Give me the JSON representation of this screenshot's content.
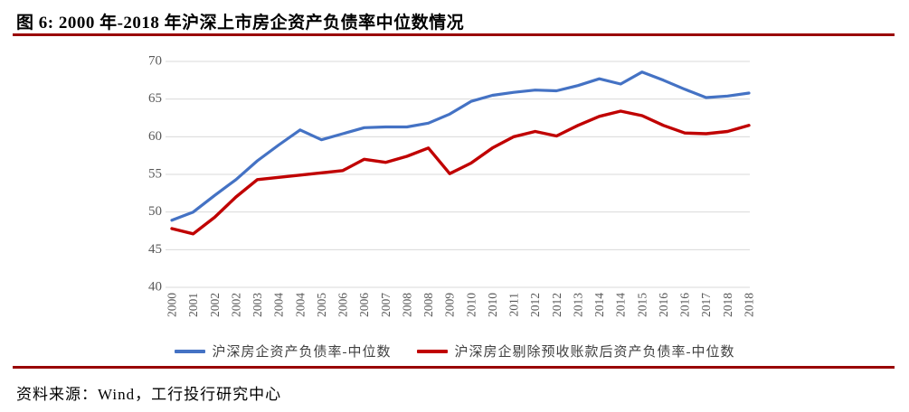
{
  "figure": {
    "title": "图 6: 2000 年-2018 年沪深上市房企资产负债率中位数情况",
    "source": "资料来源：Wind，工行投行研究中心"
  },
  "colors": {
    "rule": "#990000",
    "grid": "#D9D9D9",
    "axis_text": "#595959",
    "legend_text": "#404040",
    "series_blue": "#4472C4",
    "series_red": "#C00000"
  },
  "chart_data": {
    "type": "line",
    "title": "2000年-2018年沪深上市房企资产负债率中位数情况",
    "categories": [
      "2000",
      "2001",
      "2002",
      "2002",
      "2003",
      "2004",
      "2004",
      "2005",
      "2006",
      "2006",
      "2007",
      "2008",
      "2008",
      "2009",
      "2010",
      "2010",
      "2011",
      "2012",
      "2012",
      "2013",
      "2014",
      "2014",
      "2015",
      "2016",
      "2016",
      "2017",
      "2018",
      "2018"
    ],
    "series": [
      {
        "name": "沪深房企资产负债率-中位数",
        "color": "#4472C4",
        "values": [
          48.9,
          50.0,
          52.2,
          54.3,
          56.8,
          58.9,
          60.9,
          59.6,
          60.4,
          61.2,
          61.3,
          61.3,
          61.8,
          63.0,
          64.7,
          65.5,
          65.9,
          66.2,
          66.1,
          66.8,
          67.7,
          67.0,
          68.6,
          67.5,
          66.3,
          65.2,
          65.4,
          65.8
        ]
      },
      {
        "name": "沪深房企剔除预收账款后资产负债率-中位数",
        "color": "#C00000",
        "values": [
          47.8,
          47.1,
          49.3,
          52.0,
          54.3,
          54.6,
          54.9,
          55.2,
          55.5,
          57.0,
          56.6,
          57.4,
          58.5,
          55.1,
          56.5,
          58.5,
          60.0,
          60.7,
          60.1,
          61.5,
          62.7,
          63.4,
          62.8,
          61.5,
          60.5,
          60.4,
          60.7,
          61.5
        ]
      }
    ],
    "ylim": [
      40,
      70
    ],
    "yticks": [
      40,
      45,
      50,
      55,
      60,
      65,
      70
    ],
    "grid": true,
    "legend_position": "bottom",
    "x_label_rotation": -90
  }
}
